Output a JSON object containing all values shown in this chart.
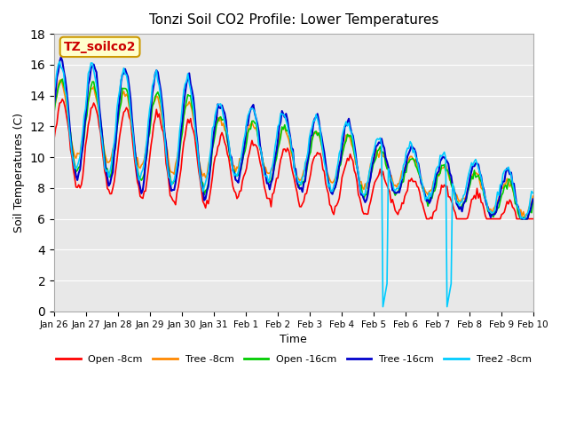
{
  "title": "Tonzi Soil CO2 Profile: Lower Temperatures",
  "xlabel": "Time",
  "ylabel": "Soil Temperatures (C)",
  "ylim": [
    0,
    18
  ],
  "yticks": [
    0,
    2,
    4,
    6,
    8,
    10,
    12,
    14,
    16,
    18
  ],
  "annotation_text": "TZ_soilco2",
  "annotation_color": "#cc0000",
  "annotation_bg": "#ffffcc",
  "annotation_border": "#cc9900",
  "series_colors": [
    "#ff0000",
    "#ff8800",
    "#00cc00",
    "#0000cc",
    "#00ccff"
  ],
  "series_labels": [
    "Open -8cm",
    "Tree -8cm",
    "Open -16cm",
    "Tree -16cm",
    "Tree2 -8cm"
  ],
  "background_color": "#e8e8e8",
  "plot_bg": "#e8e8e8",
  "x_labels": [
    "Jan 26",
    "Jan 27",
    "Jan 28",
    "Jan 29",
    "Jan 30",
    "Jan 31",
    "Feb 1",
    "Feb 2",
    "Feb 3",
    "Feb 4",
    "Feb 5",
    "Feb 6",
    "Feb 7",
    "Feb 8",
    "Feb 9",
    "Feb 10"
  ],
  "num_points": 352
}
